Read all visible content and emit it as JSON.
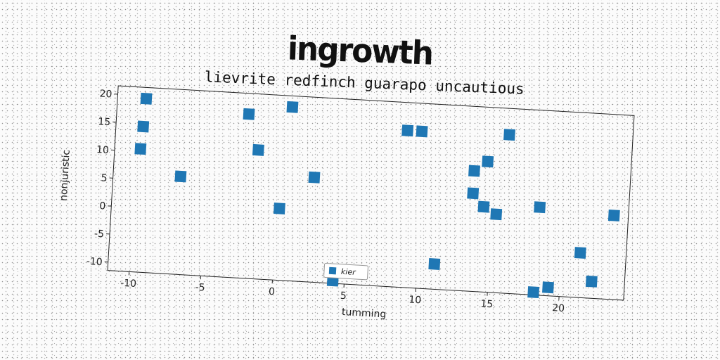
{
  "title": "ingrowth",
  "chart_data": {
    "type": "scatter",
    "subtitle": "lievrite redfinch guarapo uncautious",
    "xlabel": "tumming",
    "ylabel": "nonjuristic",
    "xlim": [
      -11.5,
      24.5
    ],
    "ylim": [
      -11.5,
      21.5
    ],
    "xticks": [
      "-10",
      "-5",
      "0",
      "5",
      "10",
      "15",
      "20"
    ],
    "xtick_values": [
      -10,
      -5,
      0,
      5,
      10,
      15,
      20
    ],
    "yticks": [
      "20",
      "15",
      "10",
      "5",
      "0",
      "-5",
      "-10"
    ],
    "ytick_values": [
      20,
      15,
      10,
      5,
      0,
      -5,
      -10
    ],
    "grid": false,
    "legend_position": "lower-center",
    "series": [
      {
        "name": "kier",
        "color": "#1f77b4",
        "marker": "square",
        "points": [
          [
            -9.5,
            19.5
          ],
          [
            -9.6,
            14.5
          ],
          [
            -9.7,
            10.5
          ],
          [
            -6.8,
            6.0
          ],
          [
            -2.3,
            17.8
          ],
          [
            -1.5,
            11.5
          ],
          [
            0.7,
            19.5
          ],
          [
            0.2,
            1.3
          ],
          [
            2.5,
            7.2
          ],
          [
            4.2,
            -11.0
          ],
          [
            8.8,
            16.5
          ],
          [
            9.8,
            16.5
          ],
          [
            11.2,
            -7.0
          ],
          [
            13.6,
            10.0
          ],
          [
            13.6,
            6.0
          ],
          [
            14.5,
            11.8
          ],
          [
            14.4,
            3.7
          ],
          [
            15.3,
            2.5
          ],
          [
            15.9,
            16.8
          ],
          [
            18.3,
            4.2
          ],
          [
            18.2,
            -11.0
          ],
          [
            19.2,
            -10.0
          ],
          [
            21.3,
            -3.5
          ],
          [
            22.2,
            -8.5
          ],
          [
            23.5,
            3.5
          ]
        ]
      }
    ]
  }
}
